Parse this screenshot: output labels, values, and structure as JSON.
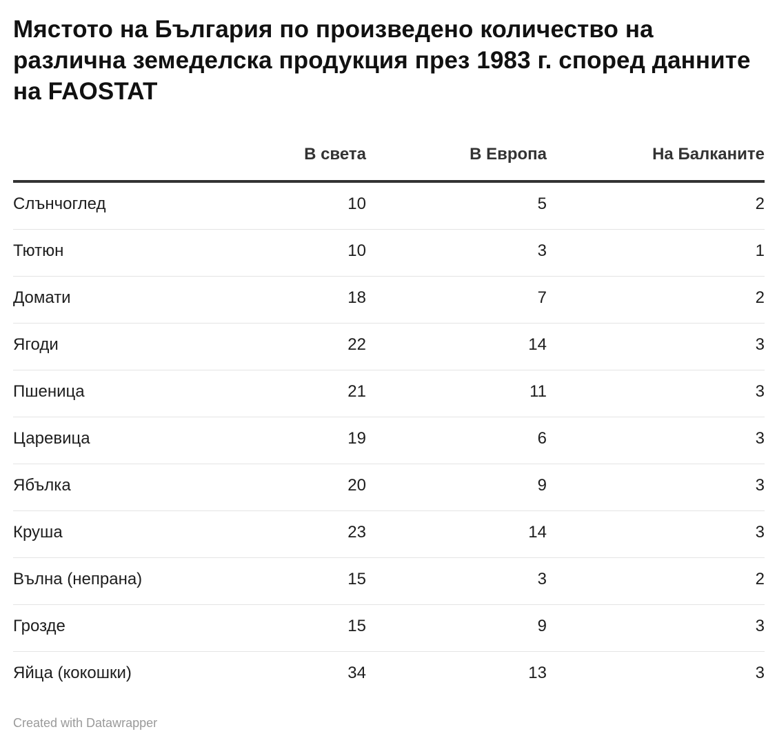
{
  "title": "Мястото на България по произведено количество на различна земеделска продукция през 1983 г. според данните на FAOSTAT",
  "footer": "Created with Datawrapper",
  "chart_data": {
    "type": "table",
    "title": "Мястото на България по произведено количество на различна земеделска продукция през 1983 г. според данните на FAOSTAT",
    "columns": [
      "",
      "В света",
      "В Европа",
      "На Балканите"
    ],
    "rows": [
      {
        "name": "Слънчоглед",
        "world": "10",
        "europe": "5",
        "balkans": "2"
      },
      {
        "name": "Тютюн",
        "world": "10",
        "europe": "3",
        "balkans": "1"
      },
      {
        "name": "Домати",
        "world": "18",
        "europe": "7",
        "balkans": "2"
      },
      {
        "name": "Ягоди",
        "world": "22",
        "europe": "14",
        "balkans": "3"
      },
      {
        "name": "Пшеница",
        "world": "21",
        "europe": "11",
        "balkans": "3"
      },
      {
        "name": "Царевица",
        "world": "19",
        "europe": "6",
        "balkans": "3"
      },
      {
        "name": "Ябълка",
        "world": "20",
        "europe": "9",
        "balkans": "3"
      },
      {
        "name": "Круша",
        "world": "23",
        "europe": "14",
        "balkans": "3"
      },
      {
        "name": "Вълна (непрана)",
        "world": "15",
        "europe": "3",
        "balkans": "2"
      },
      {
        "name": "Грозде",
        "world": "15",
        "europe": "9",
        "balkans": "3"
      },
      {
        "name": "Яйца (кокошки)",
        "world": "34",
        "europe": "13",
        "balkans": "3"
      }
    ]
  }
}
